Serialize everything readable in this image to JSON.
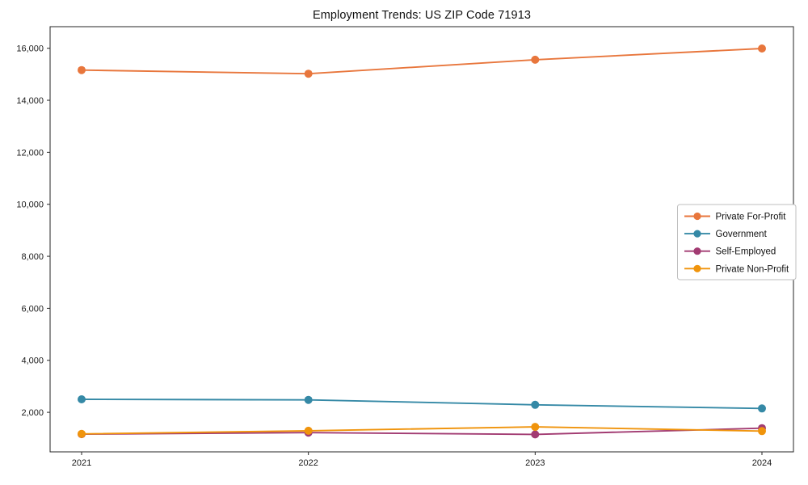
{
  "chart_data": {
    "type": "line",
    "title": "Employment Trends: US ZIP Code 71913",
    "xlabel": "",
    "ylabel": "",
    "x": [
      "2021",
      "2022",
      "2023",
      "2024"
    ],
    "series": [
      {
        "name": "Private For-Profit",
        "color": "#E8763C",
        "values": [
          15160,
          15020,
          15560,
          15990
        ]
      },
      {
        "name": "Government",
        "color": "#3589A6",
        "values": [
          2500,
          2480,
          2290,
          2150
        ]
      },
      {
        "name": "Self-Employed",
        "color": "#A23B72",
        "values": [
          1160,
          1220,
          1150,
          1390
        ]
      },
      {
        "name": "Private Non-Profit",
        "color": "#F0940C",
        "values": [
          1170,
          1290,
          1440,
          1280
        ]
      }
    ],
    "yticks": [
      2000,
      4000,
      6000,
      8000,
      10000,
      12000,
      14000,
      16000
    ],
    "ytick_labels": [
      "2,000",
      "4,000",
      "6,000",
      "8,000",
      "10,000",
      "12,000",
      "14,000",
      "16,000"
    ],
    "ylim": [
      480,
      16830
    ],
    "grid": false,
    "marker": "circle",
    "legend_position": "right",
    "legend_border_color": "#bfbfbf",
    "axis_color": "#262626",
    "text_color": "#1a1a1a",
    "background_color": "#ffffff"
  }
}
